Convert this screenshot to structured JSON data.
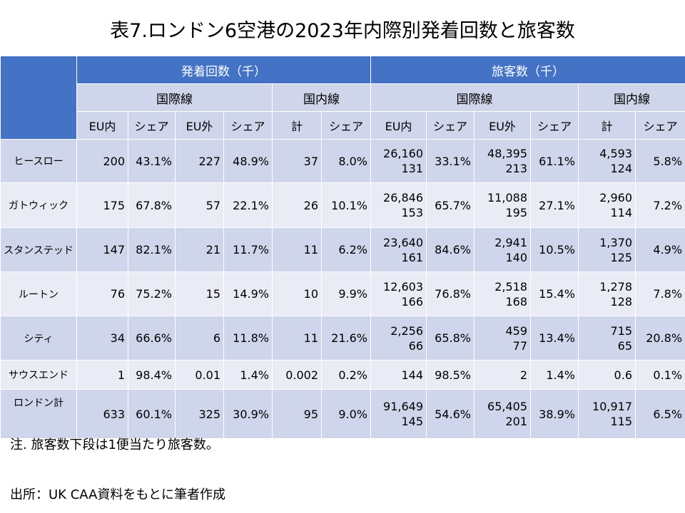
{
  "title": "表7.ロンドン6空港の2023年内際別発着回数と旅客数",
  "headers": {
    "group_flights": "発着回数（千）",
    "group_passengers": "旅客数（千）",
    "flights_intl": "国際線",
    "flights_dom": "国内線",
    "pax_intl": "国際線",
    "pax_dom": "国内線",
    "cols": [
      "EU内",
      "シェア",
      "EU外",
      "シェア",
      "計",
      "シェア",
      "EU内",
      "シェア",
      "EU外",
      "シェア",
      "計",
      "シェア"
    ]
  },
  "rows": [
    {
      "label": "ヒースロー",
      "c": [
        "200",
        "43.1%",
        "227",
        "48.9%",
        "37",
        "8.0%",
        [
          "26,160",
          "131"
        ],
        "33.1%",
        [
          "48,395",
          "213"
        ],
        "61.1%",
        [
          "4,593",
          "124"
        ],
        "5.8%"
      ]
    },
    {
      "label": "ガトウィック",
      "c": [
        "175",
        "67.8%",
        "57",
        "22.1%",
        "26",
        "10.1%",
        [
          "26,846",
          "153"
        ],
        "65.7%",
        [
          "11,088",
          "195"
        ],
        "27.1%",
        [
          "2,960",
          "114"
        ],
        "7.2%"
      ]
    },
    {
      "label": "スタンステッド",
      "c": [
        "147",
        "82.1%",
        "21",
        "11.7%",
        "11",
        "6.2%",
        [
          "23,640",
          "161"
        ],
        "84.6%",
        [
          "2,941",
          "140"
        ],
        "10.5%",
        [
          "1,370",
          "125"
        ],
        "4.9%"
      ]
    },
    {
      "label": "ルートン",
      "c": [
        "76",
        "75.2%",
        "15",
        "14.9%",
        "10",
        "9.9%",
        [
          "12,603",
          "166"
        ],
        "76.8%",
        [
          "2,518",
          "168"
        ],
        "15.4%",
        [
          "1,278",
          "128"
        ],
        "7.8%"
      ]
    },
    {
      "label": "シティ",
      "c": [
        "34",
        "66.6%",
        "6",
        "11.8%",
        "11",
        "21.6%",
        [
          "2,256",
          "66"
        ],
        "65.8%",
        [
          "459",
          "77"
        ],
        "13.4%",
        [
          "715",
          "65"
        ],
        "20.8%"
      ]
    },
    {
      "label": "サウスエンド",
      "c": [
        "1",
        "98.4%",
        "0.01",
        "1.4%",
        "0.002",
        "0.2%",
        [
          "144"
        ],
        "98.5%",
        [
          "2"
        ],
        "1.4%",
        [
          "0.6"
        ],
        "0.1%"
      ]
    },
    {
      "label": "ロンドン計",
      "c": [
        "633",
        "60.1%",
        "325",
        "30.9%",
        "95",
        "9.0%",
        [
          "91,649",
          "145"
        ],
        "54.6%",
        [
          "65,405",
          "201"
        ],
        "38.9%",
        [
          "10,917",
          "115"
        ],
        "6.5%"
      ]
    }
  ],
  "note": "注. 旅客数下段は1便当たり旅客数。",
  "source": "出所：UK CAA資料をもとに筆者作成"
}
